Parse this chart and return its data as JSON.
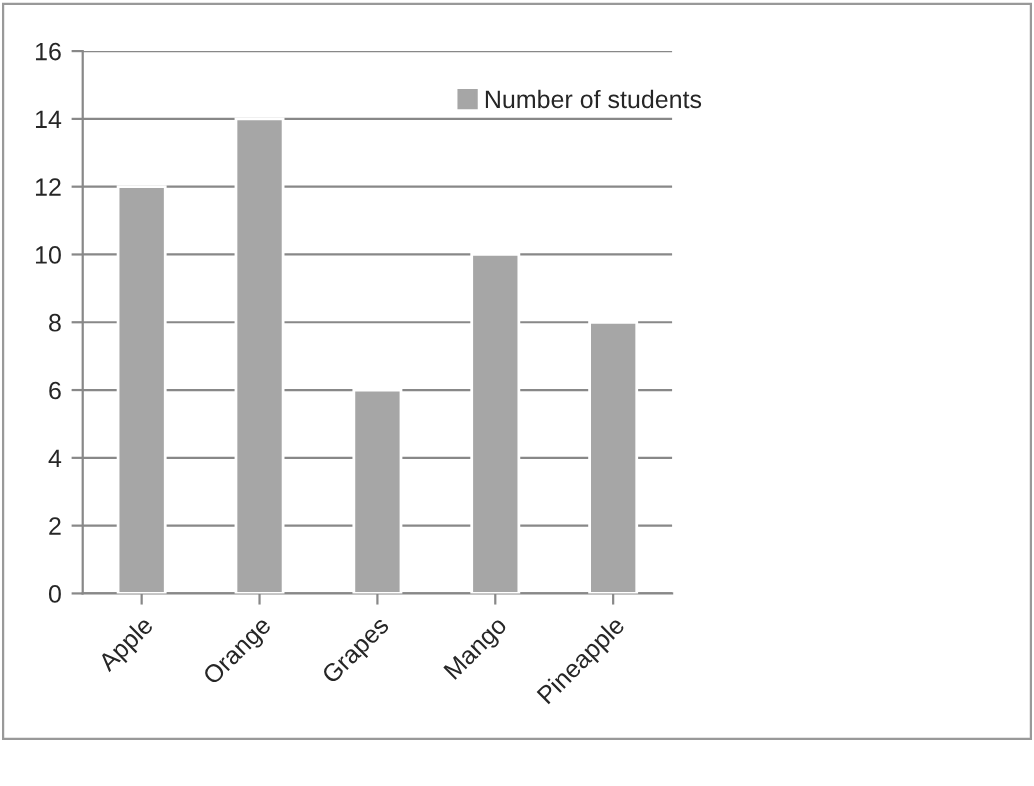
{
  "chart_data": {
    "type": "bar",
    "categories": [
      "Apple",
      "Orange",
      "Grapes",
      "Mango",
      "Pineapple"
    ],
    "series": [
      {
        "name": "Number of students",
        "color": "#a6a6a6",
        "values": [
          12,
          14,
          6,
          10,
          8
        ]
      }
    ],
    "ylim": [
      0,
      16
    ],
    "yticks": [
      0,
      2,
      4,
      6,
      8,
      10,
      12,
      14,
      16
    ],
    "grid": "y",
    "legend": "top right"
  }
}
